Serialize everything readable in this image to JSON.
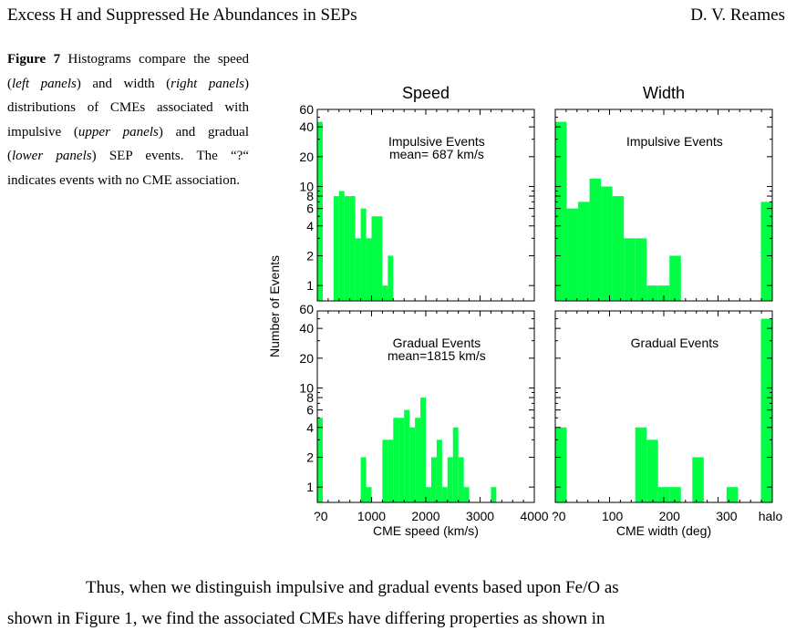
{
  "header": {
    "title": "Excess H and Suppressed He Abundances in SEPs",
    "author": "D. V. Reames"
  },
  "caption": {
    "label": "Figure 7",
    "t1": " Histograms compare the speed (",
    "i1": "left panels",
    "t2": ") and width (",
    "i2": "right panels",
    "t3": ") distributions of CMEs associated with impulsive (",
    "i3": "upper panels",
    "t4": ") and gradual (",
    "i4": "lower panels",
    "t5": ") SEP events. The “?“ indicates events with no CME association."
  },
  "body": {
    "line1": "Thus, when we distinguish impulsive and gradual events based upon Fe/O as",
    "line2": "shown in Figure 1, we find the associated CMEs have differing properties as shown in"
  },
  "chart_data": [
    {
      "type": "bar",
      "title": "Speed",
      "label": "Impulsive Events",
      "stat": "mean= 687 km/s",
      "ylabel": "Number of Events",
      "yscale": "log",
      "ylim": [
        0.7,
        60
      ],
      "yticks": [
        "1",
        "2",
        "4",
        "6",
        "8",
        "10",
        "20",
        "40",
        "60"
      ],
      "xlim": [
        0,
        4000
      ],
      "bin_width": 100,
      "bins": [
        {
          "x": 0,
          "y": 45,
          "label": "?"
        },
        {
          "x": 300,
          "y": 8
        },
        {
          "x": 400,
          "y": 9
        },
        {
          "x": 500,
          "y": 8
        },
        {
          "x": 600,
          "y": 8
        },
        {
          "x": 700,
          "y": 3
        },
        {
          "x": 800,
          "y": 6
        },
        {
          "x": 900,
          "y": 3
        },
        {
          "x": 1000,
          "y": 5
        },
        {
          "x": 1100,
          "y": 5
        },
        {
          "x": 1200,
          "y": 1
        },
        {
          "x": 1300,
          "y": 2
        }
      ]
    },
    {
      "type": "bar",
      "title": "Width",
      "label": "Impulsive Events",
      "yscale": "log",
      "ylim": [
        0.7,
        60
      ],
      "xlim": [
        0,
        380
      ],
      "bin_width": 20,
      "bins": [
        {
          "x": 0,
          "y": 45,
          "label": "?"
        },
        {
          "x": 20,
          "y": 6
        },
        {
          "x": 40,
          "y": 7
        },
        {
          "x": 60,
          "y": 12
        },
        {
          "x": 80,
          "y": 10
        },
        {
          "x": 100,
          "y": 8
        },
        {
          "x": 120,
          "y": 3
        },
        {
          "x": 140,
          "y": 3
        },
        {
          "x": 160,
          "y": 1
        },
        {
          "x": 180,
          "y": 1
        },
        {
          "x": 200,
          "y": 2
        },
        {
          "x": 360,
          "y": 7,
          "label": "halo"
        }
      ]
    },
    {
      "type": "bar",
      "label": "Gradual Events",
      "stat": "mean=1815 km/s",
      "xlabel": "CME speed (km/s)",
      "yscale": "log",
      "ylim": [
        0.7,
        60
      ],
      "yticks": [
        "1",
        "2",
        "4",
        "6",
        "8",
        "10",
        "20",
        "40",
        "60"
      ],
      "xlim": [
        0,
        4000
      ],
      "xticks": [
        "?0",
        "1000",
        "2000",
        "3000",
        "4000"
      ],
      "bin_width": 100,
      "bins": [
        {
          "x": 0,
          "y": 5,
          "label": "?"
        },
        {
          "x": 800,
          "y": 2
        },
        {
          "x": 900,
          "y": 1
        },
        {
          "x": 1200,
          "y": 3
        },
        {
          "x": 1300,
          "y": 3
        },
        {
          "x": 1400,
          "y": 5
        },
        {
          "x": 1500,
          "y": 5
        },
        {
          "x": 1600,
          "y": 6
        },
        {
          "x": 1700,
          "y": 4
        },
        {
          "x": 1800,
          "y": 5
        },
        {
          "x": 1900,
          "y": 8
        },
        {
          "x": 2000,
          "y": 1
        },
        {
          "x": 2100,
          "y": 2
        },
        {
          "x": 2200,
          "y": 3
        },
        {
          "x": 2300,
          "y": 1
        },
        {
          "x": 2400,
          "y": 2
        },
        {
          "x": 2500,
          "y": 4
        },
        {
          "x": 2600,
          "y": 2
        },
        {
          "x": 2700,
          "y": 1
        },
        {
          "x": 3200,
          "y": 1
        }
      ]
    },
    {
      "type": "bar",
      "label": "Gradual Events",
      "xlabel": "CME width (deg)",
      "yscale": "log",
      "ylim": [
        0.7,
        60
      ],
      "xlim": [
        0,
        380
      ],
      "xticks": [
        "?0",
        "100",
        "200",
        "300",
        "halo"
      ],
      "bin_width": 20,
      "bins": [
        {
          "x": 0,
          "y": 4,
          "label": "?"
        },
        {
          "x": 140,
          "y": 4
        },
        {
          "x": 160,
          "y": 3
        },
        {
          "x": 180,
          "y": 1
        },
        {
          "x": 200,
          "y": 1
        },
        {
          "x": 240,
          "y": 2
        },
        {
          "x": 300,
          "y": 1
        },
        {
          "x": 360,
          "y": 50,
          "label": "halo"
        }
      ]
    }
  ],
  "colors": {
    "bar": "#00ff44",
    "axis": "#000000"
  }
}
